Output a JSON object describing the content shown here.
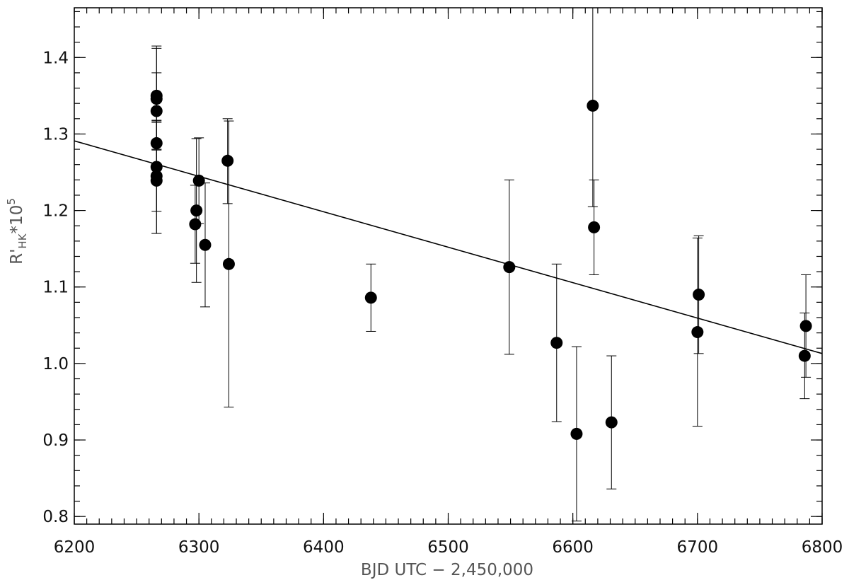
{
  "chart_data": {
    "type": "scatter",
    "xlabel": "BJD UTC − 2,450,000",
    "ylabel": {
      "base": "R'",
      "subscript": "HK",
      "rest": "*10",
      "superscript": "5"
    },
    "xlim": [
      6200,
      6800
    ],
    "ylim": [
      0.79,
      1.465
    ],
    "x_ticks": [
      6200,
      6300,
      6400,
      6500,
      6600,
      6700,
      6800
    ],
    "x_tick_labels": [
      "6200",
      "6300",
      "6400",
      "6500",
      "6600",
      "6700",
      "6800"
    ],
    "y_ticks": [
      0.8,
      0.9,
      1.0,
      1.1,
      1.2,
      1.3,
      1.4
    ],
    "y_tick_labels": [
      "0.8",
      "0.9",
      "1.0",
      "1.1",
      "1.2",
      "1.3",
      "1.4"
    ],
    "x_minor_step": 10,
    "y_minor_step": 0.02,
    "grid": false,
    "series": [
      {
        "points": [
          {
            "x": 6266,
            "y": 1.35,
            "err_low": 0.065,
            "err_high": 0.065
          },
          {
            "x": 6266,
            "y": 1.346,
            "err_low": 0.066,
            "err_high": 0.066
          },
          {
            "x": 6266,
            "y": 1.33,
            "err_low": 0.05,
            "err_high": 0.05
          },
          {
            "x": 6266,
            "y": 1.288,
            "err_low": 0.05,
            "err_high": 0.03
          },
          {
            "x": 6266,
            "y": 1.257,
            "err_low": 0.087,
            "err_high": 0.06
          },
          {
            "x": 6266,
            "y": 1.245,
            "err_low": 0.075,
            "err_high": 0.07
          },
          {
            "x": 6266,
            "y": 1.239,
            "err_low": 0.04,
            "err_high": 0.04
          },
          {
            "x": 6297,
            "y": 1.182,
            "err_low": 0.051,
            "err_high": 0.051
          },
          {
            "x": 6298,
            "y": 1.2,
            "err_low": 0.094,
            "err_high": 0.094
          },
          {
            "x": 6300,
            "y": 1.239,
            "err_low": 0.056,
            "err_high": 0.056
          },
          {
            "x": 6305,
            "y": 1.155,
            "err_low": 0.081,
            "err_high": 0.081
          },
          {
            "x": 6323,
            "y": 1.265,
            "err_low": 0.056,
            "err_high": 0.055
          },
          {
            "x": 6324,
            "y": 1.13,
            "err_low": 0.187,
            "err_high": 0.187
          },
          {
            "x": 6438,
            "y": 1.086,
            "err_low": 0.044,
            "err_high": 0.044
          },
          {
            "x": 6549,
            "y": 1.126,
            "err_low": 0.114,
            "err_high": 0.114
          },
          {
            "x": 6587,
            "y": 1.027,
            "err_low": 0.103,
            "err_high": 0.103
          },
          {
            "x": 6603,
            "y": 0.908,
            "err_low": 0.114,
            "err_high": 0.114
          },
          {
            "x": 6616,
            "y": 1.337,
            "err_low": 0.132,
            "err_high": 0.18
          },
          {
            "x": 6617,
            "y": 1.178,
            "err_low": 0.062,
            "err_high": 0.062
          },
          {
            "x": 6631,
            "y": 0.923,
            "err_low": 0.087,
            "err_high": 0.087
          },
          {
            "x": 6700,
            "y": 1.041,
            "err_low": 0.123,
            "err_high": 0.123
          },
          {
            "x": 6701,
            "y": 1.09,
            "err_low": 0.077,
            "err_high": 0.077
          },
          {
            "x": 6786,
            "y": 1.01,
            "err_low": 0.056,
            "err_high": 0.056
          },
          {
            "x": 6787,
            "y": 1.049,
            "err_low": 0.067,
            "err_high": 0.067
          }
        ]
      }
    ],
    "fit_line": {
      "x": [
        6200,
        6800
      ],
      "y": [
        1.291,
        1.013
      ]
    },
    "colors": {
      "marker": "#000000",
      "line": "#000000",
      "axis": "#000000"
    }
  }
}
